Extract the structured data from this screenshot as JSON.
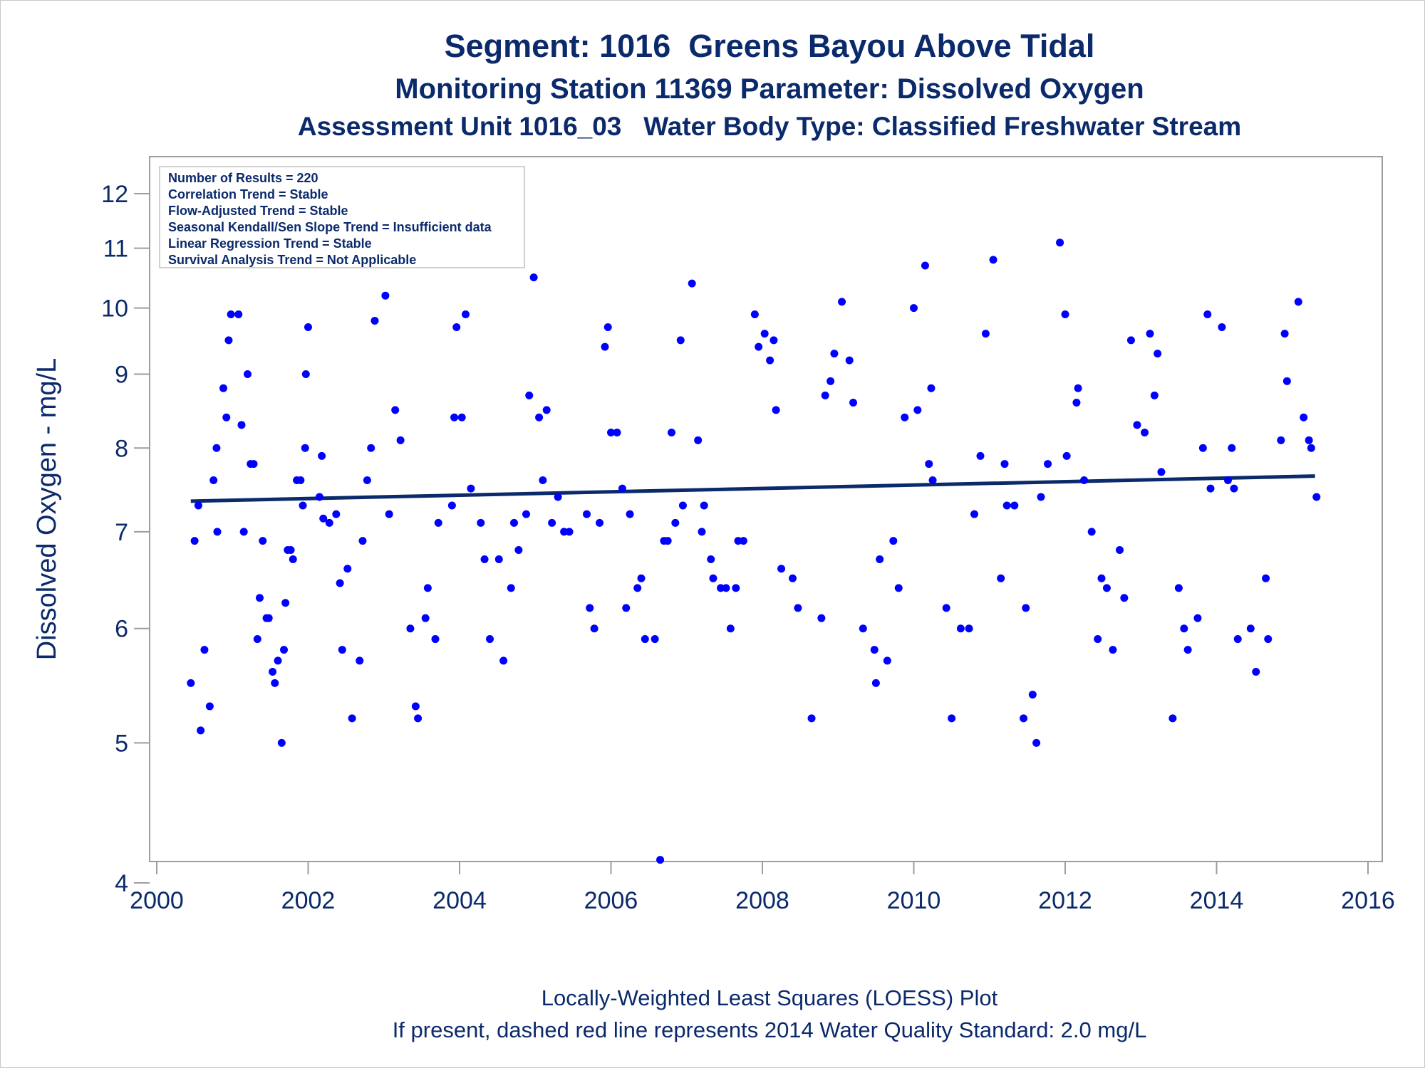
{
  "chart_data": {
    "type": "scatter",
    "title": "Segment: 1016  Greens Bayou Above Tidal",
    "subtitle": "Monitoring Station 11369 Parameter: Dissolved Oxygen",
    "subtitle2": "Assessment Unit 1016_03   Water Body Type: Classified Freshwater Stream",
    "ylabel": "Dissolved Oxygen - mg/L",
    "xlabel": "",
    "footnotes": [
      "Locally-Weighted Least Squares (LOESS) Plot",
      "If present, dashed red line represents 2014 Water Quality Standard: 2.0 mg/L"
    ],
    "stats_box": [
      "Number of Results = 220",
      "Correlation Trend = Stable",
      "Flow-Adjusted Trend = Stable",
      "Seasonal Kendall/Sen Slope Trend = Insufficient data",
      "Linear Regression Trend = Stable",
      "Survival Analysis Trend = Not Applicable"
    ],
    "x_ticks": [
      "2000",
      "2002",
      "2004",
      "2006",
      "2008",
      "2010",
      "2012",
      "2014",
      "2016"
    ],
    "y_ticks": [
      "4",
      "5",
      "6",
      "7",
      "8",
      "9",
      "10",
      "11",
      "12"
    ],
    "xlim": [
      2000,
      2016
    ],
    "ylim": [
      4,
      12.5
    ],
    "y_scale": "log",
    "grid": false,
    "colors": {
      "points": "#0000ff",
      "trend": "#0b2a6b",
      "text": "#0b2a6b",
      "axis": "#9e9e9e"
    },
    "trend_line": {
      "x": [
        2000.45,
        2015.3
      ],
      "y": [
        7.35,
        7.65
      ]
    },
    "points": [
      [
        2000.45,
        5.5
      ],
      [
        2000.5,
        6.9
      ],
      [
        2000.55,
        7.3
      ],
      [
        2000.58,
        5.1
      ],
      [
        2000.63,
        5.8
      ],
      [
        2000.7,
        5.3
      ],
      [
        2000.75,
        7.6
      ],
      [
        2000.79,
        8.0
      ],
      [
        2000.8,
        7.0
      ],
      [
        2000.88,
        8.8
      ],
      [
        2000.92,
        8.4
      ],
      [
        2000.95,
        9.5
      ],
      [
        2000.98,
        9.9
      ],
      [
        2001.02,
        11.6
      ],
      [
        2001.05,
        11.5
      ],
      [
        2001.08,
        9.9
      ],
      [
        2001.12,
        8.3
      ],
      [
        2001.15,
        7.0
      ],
      [
        2001.2,
        9.0
      ],
      [
        2001.24,
        7.8
      ],
      [
        2001.28,
        7.8
      ],
      [
        2001.33,
        5.9
      ],
      [
        2001.36,
        6.3
      ],
      [
        2001.4,
        6.9
      ],
      [
        2001.45,
        6.1
      ],
      [
        2001.48,
        6.1
      ],
      [
        2001.53,
        5.6
      ],
      [
        2001.56,
        5.5
      ],
      [
        2001.6,
        5.7
      ],
      [
        2001.65,
        5.0
      ],
      [
        2001.68,
        5.8
      ],
      [
        2001.7,
        6.25
      ],
      [
        2001.73,
        6.8
      ],
      [
        2001.77,
        6.8
      ],
      [
        2001.8,
        6.7
      ],
      [
        2001.85,
        7.6
      ],
      [
        2001.9,
        7.6
      ],
      [
        2001.93,
        7.3
      ],
      [
        2001.96,
        8.0
      ],
      [
        2001.97,
        9.0
      ],
      [
        2002.0,
        9.7
      ],
      [
        2002.15,
        7.4
      ],
      [
        2002.18,
        7.9
      ],
      [
        2002.2,
        7.15
      ],
      [
        2002.28,
        7.1
      ],
      [
        2002.37,
        7.2
      ],
      [
        2002.42,
        6.45
      ],
      [
        2002.45,
        5.8
      ],
      [
        2002.52,
        6.6
      ],
      [
        2002.58,
        5.2
      ],
      [
        2002.68,
        5.7
      ],
      [
        2002.72,
        6.9
      ],
      [
        2002.78,
        7.6
      ],
      [
        2002.83,
        8.0
      ],
      [
        2002.88,
        9.8
      ],
      [
        2002.92,
        12.4
      ],
      [
        2003.02,
        10.2
      ],
      [
        2003.07,
        7.2
      ],
      [
        2003.15,
        8.5
      ],
      [
        2003.22,
        8.1
      ],
      [
        2003.35,
        6.0
      ],
      [
        2003.42,
        5.3
      ],
      [
        2003.45,
        5.2
      ],
      [
        2003.55,
        6.1
      ],
      [
        2003.58,
        6.4
      ],
      [
        2003.68,
        5.9
      ],
      [
        2003.72,
        7.1
      ],
      [
        2003.9,
        7.3
      ],
      [
        2003.93,
        8.4
      ],
      [
        2003.96,
        9.7
      ],
      [
        2004.03,
        8.4
      ],
      [
        2004.08,
        9.9
      ],
      [
        2004.15,
        7.5
      ],
      [
        2004.28,
        7.1
      ],
      [
        2004.33,
        6.7
      ],
      [
        2004.4,
        5.9
      ],
      [
        2004.52,
        6.7
      ],
      [
        2004.58,
        5.7
      ],
      [
        2004.68,
        6.4
      ],
      [
        2004.72,
        7.1
      ],
      [
        2004.78,
        6.8
      ],
      [
        2004.88,
        7.2
      ],
      [
        2004.92,
        8.7
      ],
      [
        2004.98,
        10.5
      ],
      [
        2005.05,
        8.4
      ],
      [
        2005.1,
        7.6
      ],
      [
        2005.15,
        8.5
      ],
      [
        2005.22,
        7.1
      ],
      [
        2005.3,
        7.4
      ],
      [
        2005.38,
        7.0
      ],
      [
        2005.45,
        7.0
      ],
      [
        2005.68,
        7.2
      ],
      [
        2005.72,
        6.2
      ],
      [
        2005.78,
        6.0
      ],
      [
        2005.85,
        7.1
      ],
      [
        2005.92,
        9.4
      ],
      [
        2005.96,
        9.7
      ],
      [
        2006.0,
        8.2
      ],
      [
        2006.08,
        8.2
      ],
      [
        2006.15,
        7.5
      ],
      [
        2006.2,
        6.2
      ],
      [
        2006.25,
        7.2
      ],
      [
        2006.35,
        6.4
      ],
      [
        2006.4,
        6.5
      ],
      [
        2006.45,
        5.9
      ],
      [
        2006.58,
        5.9
      ],
      [
        2006.65,
        4.15
      ],
      [
        2006.7,
        6.9
      ],
      [
        2006.75,
        6.9
      ],
      [
        2006.8,
        8.2
      ],
      [
        2006.85,
        7.1
      ],
      [
        2006.92,
        9.5
      ],
      [
        2006.95,
        7.3
      ],
      [
        2007.07,
        10.4
      ],
      [
        2007.15,
        8.1
      ],
      [
        2007.2,
        7.0
      ],
      [
        2007.23,
        7.3
      ],
      [
        2007.32,
        6.7
      ],
      [
        2007.35,
        6.5
      ],
      [
        2007.45,
        6.4
      ],
      [
        2007.52,
        6.4
      ],
      [
        2007.58,
        6.0
      ],
      [
        2007.65,
        6.4
      ],
      [
        2007.68,
        6.9
      ],
      [
        2007.75,
        6.9
      ],
      [
        2007.9,
        9.9
      ],
      [
        2007.95,
        9.4
      ],
      [
        2008.03,
        9.6
      ],
      [
        2008.1,
        9.2
      ],
      [
        2008.15,
        9.5
      ],
      [
        2008.18,
        8.5
      ],
      [
        2008.25,
        6.6
      ],
      [
        2008.4,
        6.5
      ],
      [
        2008.47,
        6.2
      ],
      [
        2008.65,
        5.2
      ],
      [
        2008.78,
        6.1
      ],
      [
        2008.83,
        8.7
      ],
      [
        2008.9,
        8.9
      ],
      [
        2008.95,
        9.3
      ],
      [
        2009.05,
        10.1
      ],
      [
        2009.15,
        9.2
      ],
      [
        2009.2,
        8.6
      ],
      [
        2009.33,
        6.0
      ],
      [
        2009.48,
        5.8
      ],
      [
        2009.5,
        5.5
      ],
      [
        2009.55,
        6.7
      ],
      [
        2009.65,
        5.7
      ],
      [
        2009.73,
        6.9
      ],
      [
        2009.8,
        6.4
      ],
      [
        2009.88,
        8.4
      ],
      [
        2010.0,
        10.0
      ],
      [
        2010.05,
        8.5
      ],
      [
        2010.15,
        10.7
      ],
      [
        2010.2,
        7.8
      ],
      [
        2010.23,
        8.8
      ],
      [
        2010.25,
        7.6
      ],
      [
        2010.43,
        6.2
      ],
      [
        2010.5,
        5.2
      ],
      [
        2010.62,
        6.0
      ],
      [
        2010.73,
        6.0
      ],
      [
        2010.8,
        7.2
      ],
      [
        2010.88,
        7.9
      ],
      [
        2010.95,
        9.6
      ],
      [
        2011.05,
        10.8
      ],
      [
        2011.15,
        6.5
      ],
      [
        2011.2,
        7.8
      ],
      [
        2011.23,
        7.3
      ],
      [
        2011.33,
        7.3
      ],
      [
        2011.45,
        5.2
      ],
      [
        2011.48,
        6.2
      ],
      [
        2011.57,
        5.4
      ],
      [
        2011.62,
        5.0
      ],
      [
        2011.68,
        7.4
      ],
      [
        2011.77,
        7.8
      ],
      [
        2011.93,
        11.1
      ],
      [
        2012.0,
        9.9
      ],
      [
        2012.02,
        7.9
      ],
      [
        2012.15,
        8.6
      ],
      [
        2012.17,
        8.8
      ],
      [
        2012.25,
        7.6
      ],
      [
        2012.35,
        7.0
      ],
      [
        2012.43,
        5.9
      ],
      [
        2012.48,
        6.5
      ],
      [
        2012.55,
        6.4
      ],
      [
        2012.63,
        5.8
      ],
      [
        2012.72,
        6.8
      ],
      [
        2012.78,
        6.3
      ],
      [
        2012.87,
        9.5
      ],
      [
        2012.95,
        8.3
      ],
      [
        2013.05,
        8.2
      ],
      [
        2013.12,
        9.6
      ],
      [
        2013.18,
        8.7
      ],
      [
        2013.22,
        9.3
      ],
      [
        2013.27,
        7.7
      ],
      [
        2013.42,
        5.2
      ],
      [
        2013.5,
        6.4
      ],
      [
        2013.57,
        6.0
      ],
      [
        2013.62,
        5.8
      ],
      [
        2013.75,
        6.1
      ],
      [
        2013.82,
        8.0
      ],
      [
        2013.88,
        9.9
      ],
      [
        2013.92,
        7.5
      ],
      [
        2014.07,
        9.7
      ],
      [
        2014.15,
        7.6
      ],
      [
        2014.2,
        8.0
      ],
      [
        2014.23,
        7.5
      ],
      [
        2014.28,
        5.9
      ],
      [
        2014.45,
        6.0
      ],
      [
        2014.52,
        5.6
      ],
      [
        2014.65,
        6.5
      ],
      [
        2014.68,
        5.9
      ],
      [
        2014.85,
        8.1
      ],
      [
        2014.9,
        9.6
      ],
      [
        2014.93,
        8.9
      ],
      [
        2015.08,
        10.1
      ],
      [
        2015.15,
        8.4
      ],
      [
        2015.22,
        8.1
      ],
      [
        2015.25,
        8.0
      ],
      [
        2015.32,
        7.4
      ]
    ]
  }
}
